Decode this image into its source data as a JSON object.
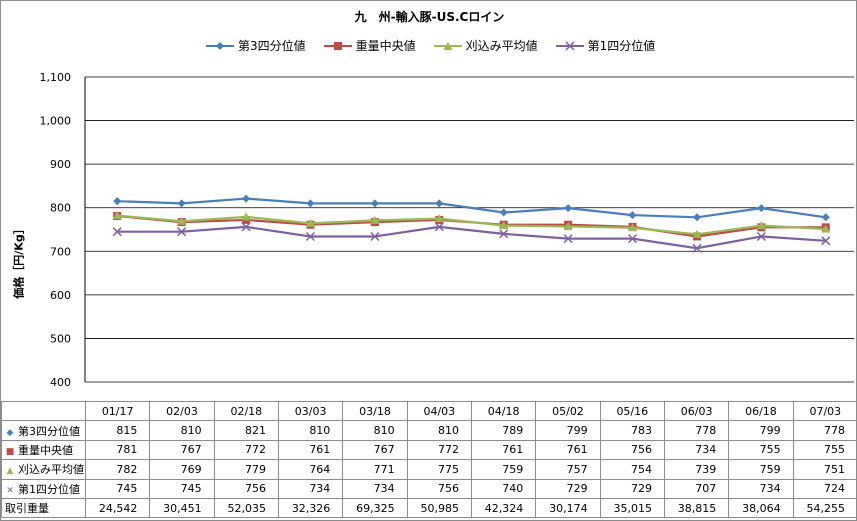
{
  "chart_data": {
    "type": "line",
    "title": "九　州-輸入豚-US.Cロイン",
    "ylabel": "価格［円/Kg］",
    "ylim": [
      400,
      1100
    ],
    "yticks": [
      "400",
      "500",
      "600",
      "700",
      "800",
      "900",
      "1,000",
      "1,100"
    ],
    "grid": true,
    "legend_position": "top",
    "categories": [
      "01/17",
      "02/03",
      "02/18",
      "03/03",
      "03/18",
      "04/03",
      "04/18",
      "05/02",
      "05/16",
      "06/03",
      "06/18",
      "07/03"
    ],
    "series": [
      {
        "name": "第3四分位値",
        "color": "#4A7EBB",
        "marker": "diamond",
        "values": [
          815,
          810,
          821,
          810,
          810,
          810,
          789,
          799,
          783,
          778,
          799,
          778
        ],
        "display": [
          "815",
          "810",
          "821",
          "810",
          "810",
          "810",
          "789",
          "799",
          "783",
          "778",
          "799",
          "778"
        ]
      },
      {
        "name": "重量中央値",
        "color": "#BE4B48",
        "marker": "square",
        "values": [
          781,
          767,
          772,
          761,
          767,
          772,
          761,
          761,
          756,
          734,
          755,
          755
        ],
        "display": [
          "781",
          "767",
          "772",
          "761",
          "767",
          "772",
          "761",
          "761",
          "756",
          "734",
          "755",
          "755"
        ]
      },
      {
        "name": "刈込み平均値",
        "color": "#98B954",
        "marker": "triangle",
        "values": [
          782,
          769,
          779,
          764,
          771,
          775,
          759,
          757,
          754,
          739,
          759,
          751
        ],
        "display": [
          "782",
          "769",
          "779",
          "764",
          "771",
          "775",
          "759",
          "757",
          "754",
          "739",
          "759",
          "751"
        ]
      },
      {
        "name": "第1四分位値",
        "color": "#7D60A0",
        "marker": "x",
        "values": [
          745,
          745,
          756,
          734,
          734,
          756,
          740,
          729,
          729,
          707,
          734,
          724
        ],
        "display": [
          "745",
          "745",
          "756",
          "734",
          "734",
          "756",
          "740",
          "729",
          "729",
          "707",
          "734",
          "724"
        ]
      }
    ],
    "table_extra_row": {
      "label": "取引重量",
      "values": [
        "24,542",
        "30,451",
        "52,035",
        "32,326",
        "69,325",
        "50,985",
        "42,324",
        "30,174",
        "35,015",
        "38,815",
        "38,064",
        "54,255"
      ]
    }
  }
}
